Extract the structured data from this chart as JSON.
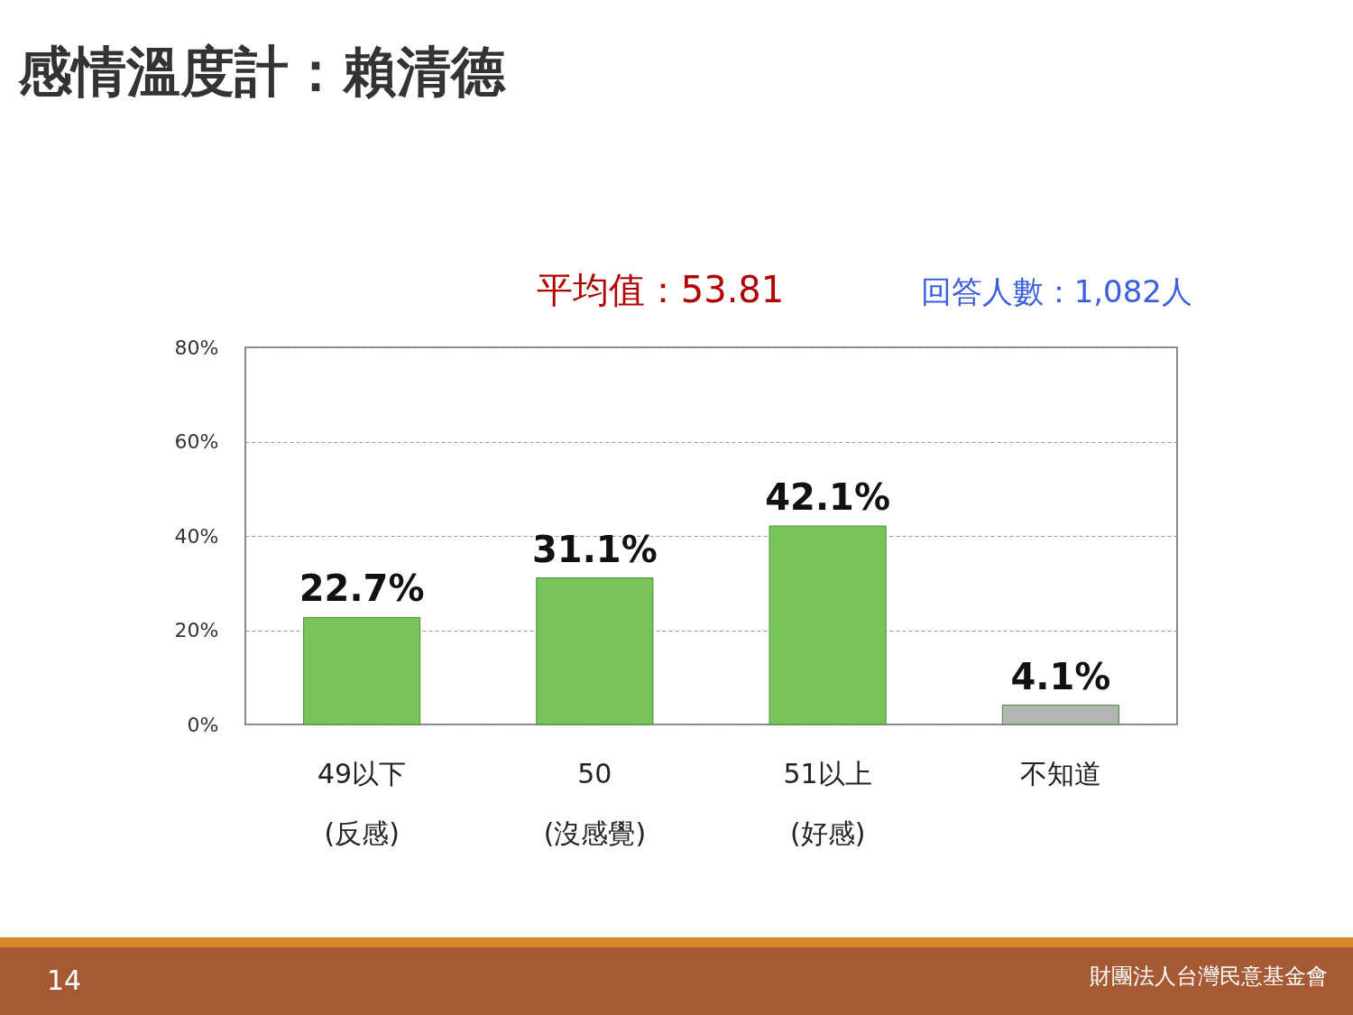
{
  "chart_data": {
    "type": "bar",
    "title": "感情溫度計：賴清德",
    "categories": [
      "49以下\n(反感)",
      "50\n(沒感覺)",
      "51以上\n(好感)",
      "不知道"
    ],
    "values": [
      22.7,
      31.1,
      42.1,
      4.1
    ],
    "colors": [
      "#76c45a",
      "#76c45a",
      "#76c45a",
      "#b4b4b4"
    ],
    "value_labels": [
      "22.7%",
      "31.1%",
      "42.1%",
      "4.1%"
    ],
    "ylim": [
      0,
      80
    ],
    "yticks": [
      {
        "value": 0,
        "label": "0%"
      },
      {
        "value": 20,
        "label": "20%"
      },
      {
        "value": 40,
        "label": "40%"
      },
      {
        "value": 60,
        "label": "60%"
      },
      {
        "value": 80,
        "label": "80%"
      }
    ],
    "grid": "y",
    "annotations": [
      "平均值：53.81",
      "回答人數：1,082人",
      "14",
      "財團法人台灣民意基金會"
    ]
  }
}
